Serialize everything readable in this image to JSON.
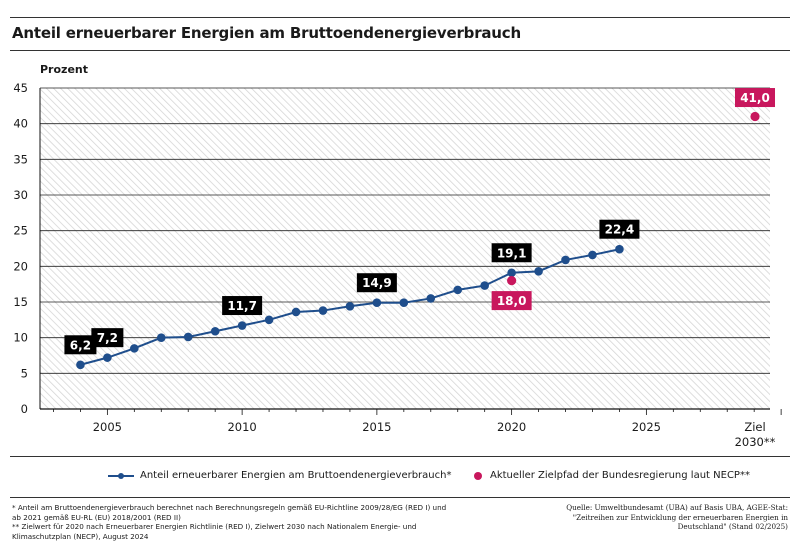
{
  "title": "Anteil erneuerbarer Energien am Bruttoendenergieverbrauch",
  "colors": {
    "series": "#1f4e8c",
    "target": "#c8175d",
    "label_bg": "#000000",
    "grid": "#222222",
    "hatch": "#d9d9d9"
  },
  "chart_data": {
    "type": "line",
    "ylabel": "Prozent",
    "ylim": [
      0,
      45
    ],
    "yticks": [
      "0",
      "5",
      "10",
      "15",
      "20",
      "25",
      "30",
      "35",
      "40",
      "45"
    ],
    "xticks": [
      {
        "x": 2005,
        "label": "2005"
      },
      {
        "x": 2010,
        "label": "2010"
      },
      {
        "x": 2015,
        "label": "2015"
      },
      {
        "x": 2020,
        "label": "2020"
      },
      {
        "x": 2025,
        "label": "2025"
      }
    ],
    "goal_tick": {
      "line1": "Ziel",
      "line2": "2030**"
    },
    "series": [
      {
        "name": "Anteil erneuerbarer Energien am Bruttoendenergieverbrauch*",
        "x": [
          2004,
          2005,
          2006,
          2007,
          2008,
          2009,
          2010,
          2011,
          2012,
          2013,
          2014,
          2015,
          2016,
          2017,
          2018,
          2019,
          2020,
          2021,
          2022,
          2023,
          2024
        ],
        "values": [
          6.2,
          7.2,
          8.5,
          10.0,
          10.1,
          10.9,
          11.7,
          12.5,
          13.6,
          13.8,
          14.4,
          14.9,
          14.9,
          15.5,
          16.7,
          17.3,
          19.1,
          19.3,
          20.9,
          21.6,
          22.4
        ],
        "labels": [
          {
            "x": 2004,
            "value": 6.2,
            "text": "6,2"
          },
          {
            "x": 2005,
            "value": 7.2,
            "text": "7,2"
          },
          {
            "x": 2010,
            "value": 11.7,
            "text": "11,7"
          },
          {
            "x": 2015,
            "value": 14.9,
            "text": "14,9"
          },
          {
            "x": 2020,
            "value": 19.1,
            "text": "19,1"
          },
          {
            "x": 2024,
            "value": 22.4,
            "text": "22,4"
          }
        ]
      }
    ],
    "targets": {
      "name": "Aktueller Zielpfad der Bundesregierung laut NECP**",
      "points": [
        {
          "x": 2020,
          "value": 18.0,
          "text": "18,0"
        },
        {
          "x": 2030,
          "value": 41.0,
          "text": "41,0"
        }
      ]
    }
  },
  "legend": {
    "series_label": "Anteil erneuerbarer Energien am Bruttoendenergieverbrauch*",
    "target_label": "Aktueller Zielpfad der Bundesregierung laut NECP**"
  },
  "footnotes": {
    "line1": "*  Anteil am Bruttoendenergieverbrauch berechnet nach  Berechnungsregeln gemäß EU-Richtline 2009/28/EG (RED I) und",
    "line2": "ab 2021 gemäß EU-RL (EU) 2018/2001 (RED II)",
    "line3": "** Zielwert für 2020 nach Erneuerbarer Energien Richtlinie (RED I), Zielwert 2030 nach Nationalem Energie- und",
    "line4": "Klimaschutzplan (NECP), August 2024"
  },
  "source": {
    "line1": "Quelle: Umweltbundesamt (UBA) auf Basis UBA, AGEE-Stat:",
    "line2": "\"Zeitreihen zur Entwicklung der erneuerbaren Energien in",
    "line3": "Deutschland\" (Stand 02/2025)"
  }
}
